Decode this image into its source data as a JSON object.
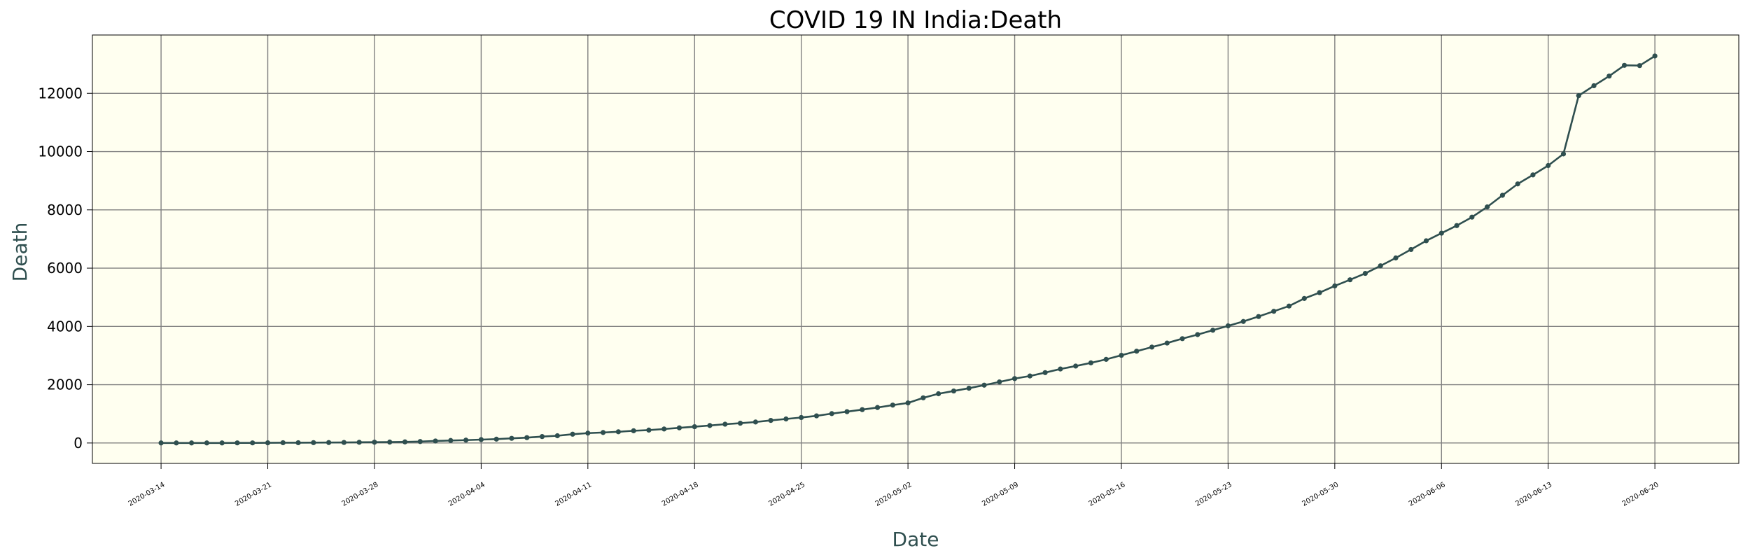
{
  "chart_data": {
    "type": "line",
    "title": "COVID 19 IN India:Death",
    "xlabel": "Date",
    "ylabel": "Death",
    "x_start": "2020-03-14",
    "x_end": "2020-06-21",
    "xticks": [
      "2020-03-14",
      "2020-03-21",
      "2020-03-28",
      "2020-04-04",
      "2020-04-11",
      "2020-04-18",
      "2020-04-25",
      "2020-05-02",
      "2020-05-09",
      "2020-05-16",
      "2020-05-23",
      "2020-05-30",
      "2020-06-06",
      "2020-06-13",
      "2020-06-20"
    ],
    "yticks": [
      0,
      2000,
      4000,
      6000,
      8000,
      10000,
      12000
    ],
    "ylim": [
      -700,
      14000
    ],
    "grid": true,
    "colors": {
      "line": "#2f4f4f",
      "plot_bg": "#fffff0",
      "grid": "#808080",
      "axis_label": "#2f4f4f"
    },
    "series": [
      {
        "values": [
          2,
          2,
          2,
          2,
          2,
          4,
          4,
          7,
          10,
          10,
          13,
          16,
          19,
          25,
          27,
          32,
          38,
          50,
          69,
          86,
          99,
          117,
          132,
          160,
          184,
          221,
          249,
          302,
          339,
          360,
          385,
          420,
          443,
          480,
          520,
          560,
          600,
          645,
          680,
          720,
          775,
          825,
          875,
          932,
          1008,
          1075,
          1145,
          1218,
          1300,
          1375,
          1550,
          1690,
          1785,
          1880,
          1985,
          2095,
          2210,
          2300,
          2415,
          2540,
          2640,
          2750,
          2870,
          3010,
          3150,
          3290,
          3430,
          3580,
          3720,
          3870,
          4020,
          4170,
          4340,
          4520,
          4700,
          4960,
          5160,
          5390,
          5600,
          5820,
          6080,
          6350,
          6640,
          6940,
          7200,
          7460,
          7750,
          8100,
          8500,
          8890,
          9200,
          9520,
          9920,
          11920,
          12260,
          12590,
          12960,
          12950,
          13280
        ]
      }
    ]
  }
}
